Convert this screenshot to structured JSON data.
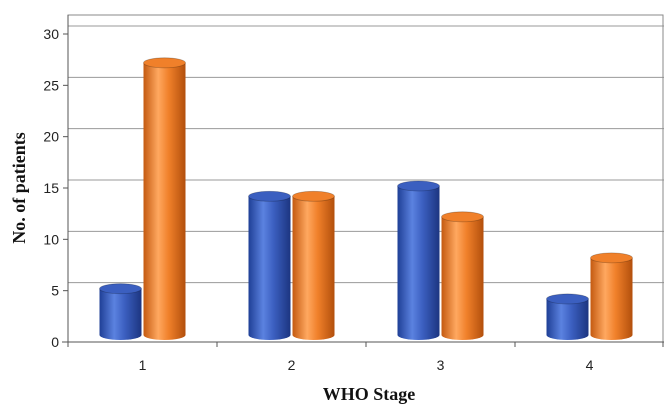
{
  "chart_data": {
    "type": "bar",
    "title": "",
    "xlabel": "WHO Stage",
    "ylabel": "No. of patients",
    "categories": [
      "1",
      "2",
      "3",
      "4"
    ],
    "series": [
      {
        "color": "#3b5fc0",
        "values": [
          5,
          14,
          15,
          4
        ]
      },
      {
        "color": "#f0802a",
        "values": [
          27,
          14,
          12,
          8
        ]
      }
    ],
    "ylim": [
      0,
      30
    ],
    "yticks": [
      0,
      5,
      10,
      15,
      20,
      25,
      30
    ],
    "grid": true,
    "legend": "none",
    "style": "3d-cylinder"
  }
}
